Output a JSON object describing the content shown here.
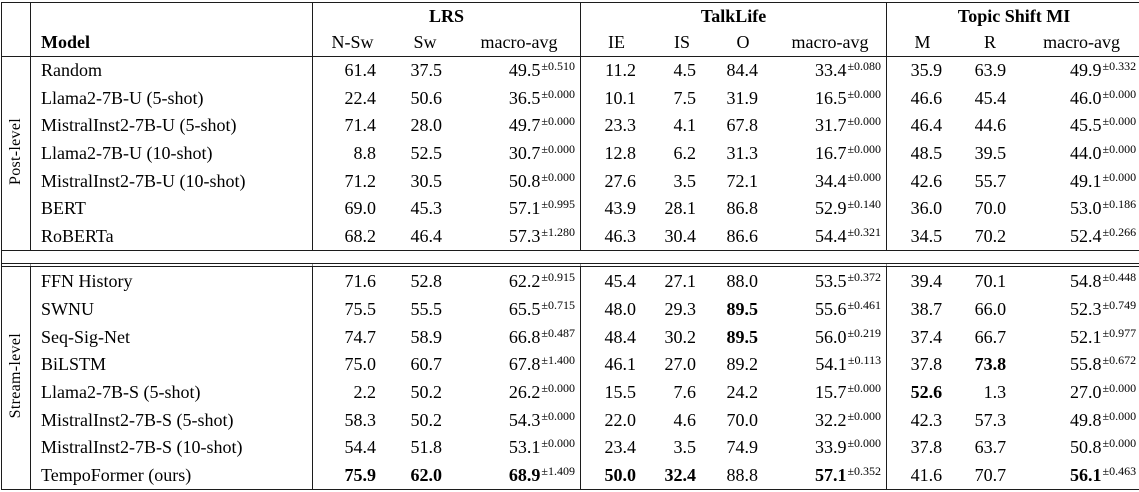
{
  "table": {
    "header": {
      "model": "Model",
      "groups": [
        {
          "label": "LRS",
          "columns": [
            "N-Sw",
            "Sw",
            "macro-avg"
          ]
        },
        {
          "label": "TalkLife",
          "columns": [
            "IE",
            "IS",
            "O",
            "macro-avg"
          ]
        },
        {
          "label": "Topic Shift MI",
          "columns": [
            "M",
            "R",
            "macro-avg"
          ]
        }
      ]
    },
    "sections": [
      {
        "label": "Post-level",
        "rows": [
          {
            "model": "Random",
            "cells": [
              {
                "v": "61.4"
              },
              {
                "v": "37.5"
              },
              {
                "v": "49.5",
                "sup": "±0.510"
              },
              {
                "v": "11.2"
              },
              {
                "v": "4.5"
              },
              {
                "v": "84.4"
              },
              {
                "v": "33.4",
                "sup": "±0.080"
              },
              {
                "v": "35.9"
              },
              {
                "v": "63.9"
              },
              {
                "v": "49.9",
                "sup": "±0.332"
              }
            ]
          },
          {
            "model": "Llama2-7B-U (5-shot)",
            "cells": [
              {
                "v": "22.4"
              },
              {
                "v": "50.6"
              },
              {
                "v": "36.5",
                "sup": "±0.000"
              },
              {
                "v": "10.1"
              },
              {
                "v": "7.5"
              },
              {
                "v": "31.9"
              },
              {
                "v": "16.5",
                "sup": "±0.000"
              },
              {
                "v": "46.6"
              },
              {
                "v": "45.4"
              },
              {
                "v": "46.0",
                "sup": "±0.000"
              }
            ]
          },
          {
            "model": "MistralInst2-7B-U (5-shot)",
            "cells": [
              {
                "v": "71.4"
              },
              {
                "v": "28.0"
              },
              {
                "v": "49.7",
                "sup": "±0.000"
              },
              {
                "v": "23.3"
              },
              {
                "v": "4.1"
              },
              {
                "v": "67.8"
              },
              {
                "v": "31.7",
                "sup": "±0.000"
              },
              {
                "v": "46.4"
              },
              {
                "v": "44.6"
              },
              {
                "v": "45.5",
                "sup": "±0.000"
              }
            ]
          },
          {
            "model": "Llama2-7B-U (10-shot)",
            "cells": [
              {
                "v": "8.8"
              },
              {
                "v": "52.5"
              },
              {
                "v": "30.7",
                "sup": "±0.000"
              },
              {
                "v": "12.8"
              },
              {
                "v": "6.2"
              },
              {
                "v": "31.3"
              },
              {
                "v": "16.7",
                "sup": "±0.000"
              },
              {
                "v": "48.5"
              },
              {
                "v": "39.5"
              },
              {
                "v": "44.0",
                "sup": "±0.000"
              }
            ]
          },
          {
            "model": "MistralInst2-7B-U (10-shot)",
            "cells": [
              {
                "v": "71.2"
              },
              {
                "v": "30.5"
              },
              {
                "v": "50.8",
                "sup": "±0.000"
              },
              {
                "v": "27.6"
              },
              {
                "v": "3.5"
              },
              {
                "v": "72.1"
              },
              {
                "v": "34.4",
                "sup": "±0.000"
              },
              {
                "v": "42.6"
              },
              {
                "v": "55.7"
              },
              {
                "v": "49.1",
                "sup": "±0.000"
              }
            ]
          },
          {
            "model": "BERT",
            "cells": [
              {
                "v": "69.0"
              },
              {
                "v": "45.3"
              },
              {
                "v": "57.1",
                "sup": "±0.995"
              },
              {
                "v": "43.9"
              },
              {
                "v": "28.1"
              },
              {
                "v": "86.8"
              },
              {
                "v": "52.9",
                "sup": "±0.140"
              },
              {
                "v": "36.0"
              },
              {
                "v": "70.0"
              },
              {
                "v": "53.0",
                "sup": "±0.186"
              }
            ]
          },
          {
            "model": "RoBERTa",
            "cells": [
              {
                "v": "68.2"
              },
              {
                "v": "46.4"
              },
              {
                "v": "57.3",
                "sup": "±1.280"
              },
              {
                "v": "46.3"
              },
              {
                "v": "30.4"
              },
              {
                "v": "86.6"
              },
              {
                "v": "54.4",
                "sup": "±0.321"
              },
              {
                "v": "34.5"
              },
              {
                "v": "70.2"
              },
              {
                "v": "52.4",
                "sup": "±0.266"
              }
            ]
          }
        ]
      },
      {
        "label": "Stream-level",
        "rows": [
          {
            "model": "FFN History",
            "cells": [
              {
                "v": "71.6"
              },
              {
                "v": "52.8"
              },
              {
                "v": "62.2",
                "sup": "±0.915"
              },
              {
                "v": "45.4"
              },
              {
                "v": "27.1"
              },
              {
                "v": "88.0"
              },
              {
                "v": "53.5",
                "sup": "±0.372"
              },
              {
                "v": "39.4"
              },
              {
                "v": "70.1"
              },
              {
                "v": "54.8",
                "sup": "±0.448"
              }
            ]
          },
          {
            "model": "SWNU",
            "cells": [
              {
                "v": "75.5"
              },
              {
                "v": "55.5"
              },
              {
                "v": "65.5",
                "sup": "±0.715"
              },
              {
                "v": "48.0"
              },
              {
                "v": "29.3"
              },
              {
                "v": "89.5",
                "b": true
              },
              {
                "v": "55.6",
                "sup": "±0.461"
              },
              {
                "v": "38.7"
              },
              {
                "v": "66.0"
              },
              {
                "v": "52.3",
                "sup": "±0.749"
              }
            ]
          },
          {
            "model": "Seq-Sig-Net",
            "cells": [
              {
                "v": "74.7"
              },
              {
                "v": "58.9"
              },
              {
                "v": "66.8",
                "sup": "±0.487"
              },
              {
                "v": "48.4"
              },
              {
                "v": "30.2"
              },
              {
                "v": "89.5",
                "b": true
              },
              {
                "v": "56.0",
                "sup": "±0.219"
              },
              {
                "v": "37.4"
              },
              {
                "v": "66.7"
              },
              {
                "v": "52.1",
                "sup": "±0.977"
              }
            ]
          },
          {
            "model": "BiLSTM",
            "cells": [
              {
                "v": "75.0"
              },
              {
                "v": "60.7"
              },
              {
                "v": "67.8",
                "sup": "±1.400"
              },
              {
                "v": "46.1"
              },
              {
                "v": "27.0"
              },
              {
                "v": "89.2"
              },
              {
                "v": "54.1",
                "sup": "±0.113"
              },
              {
                "v": "37.8"
              },
              {
                "v": "73.8",
                "b": true
              },
              {
                "v": "55.8",
                "sup": "±0.672"
              }
            ]
          },
          {
            "model": "Llama2-7B-S (5-shot)",
            "cells": [
              {
                "v": "2.2"
              },
              {
                "v": "50.2"
              },
              {
                "v": "26.2",
                "sup": "±0.000"
              },
              {
                "v": "15.5"
              },
              {
                "v": "7.6"
              },
              {
                "v": "24.2"
              },
              {
                "v": "15.7",
                "sup": "±0.000"
              },
              {
                "v": "52.6",
                "b": true
              },
              {
                "v": "1.3"
              },
              {
                "v": "27.0",
                "sup": "±0.000"
              }
            ]
          },
          {
            "model": "MistralInst2-7B-S (5-shot)",
            "cells": [
              {
                "v": "58.3"
              },
              {
                "v": "50.2"
              },
              {
                "v": "54.3",
                "sup": "±0.000"
              },
              {
                "v": "22.0"
              },
              {
                "v": "4.6"
              },
              {
                "v": "70.0"
              },
              {
                "v": "32.2",
                "sup": "±0.000"
              },
              {
                "v": "42.3"
              },
              {
                "v": "57.3"
              },
              {
                "v": "49.8",
                "sup": "±0.000"
              }
            ]
          },
          {
            "model": "MistralInst2-7B-S (10-shot)",
            "cells": [
              {
                "v": "54.4"
              },
              {
                "v": "51.8"
              },
              {
                "v": "53.1",
                "sup": "±0.000"
              },
              {
                "v": "23.4"
              },
              {
                "v": "3.5"
              },
              {
                "v": "74.9"
              },
              {
                "v": "33.9",
                "sup": "±0.000"
              },
              {
                "v": "37.8"
              },
              {
                "v": "63.7"
              },
              {
                "v": "50.8",
                "sup": "±0.000"
              }
            ]
          },
          {
            "model": "TempoFormer (ours)",
            "cells": [
              {
                "v": "75.9",
                "b": true
              },
              {
                "v": "62.0",
                "b": true
              },
              {
                "v": "68.9",
                "b": true,
                "sup": "±1.409"
              },
              {
                "v": "50.0",
                "b": true
              },
              {
                "v": "32.4",
                "b": true
              },
              {
                "v": "88.8"
              },
              {
                "v": "57.1",
                "b": true,
                "sup": "±0.352"
              },
              {
                "v": "41.6"
              },
              {
                "v": "70.7"
              },
              {
                "v": "56.1",
                "b": true,
                "sup": "±0.463"
              }
            ]
          }
        ]
      }
    ]
  }
}
